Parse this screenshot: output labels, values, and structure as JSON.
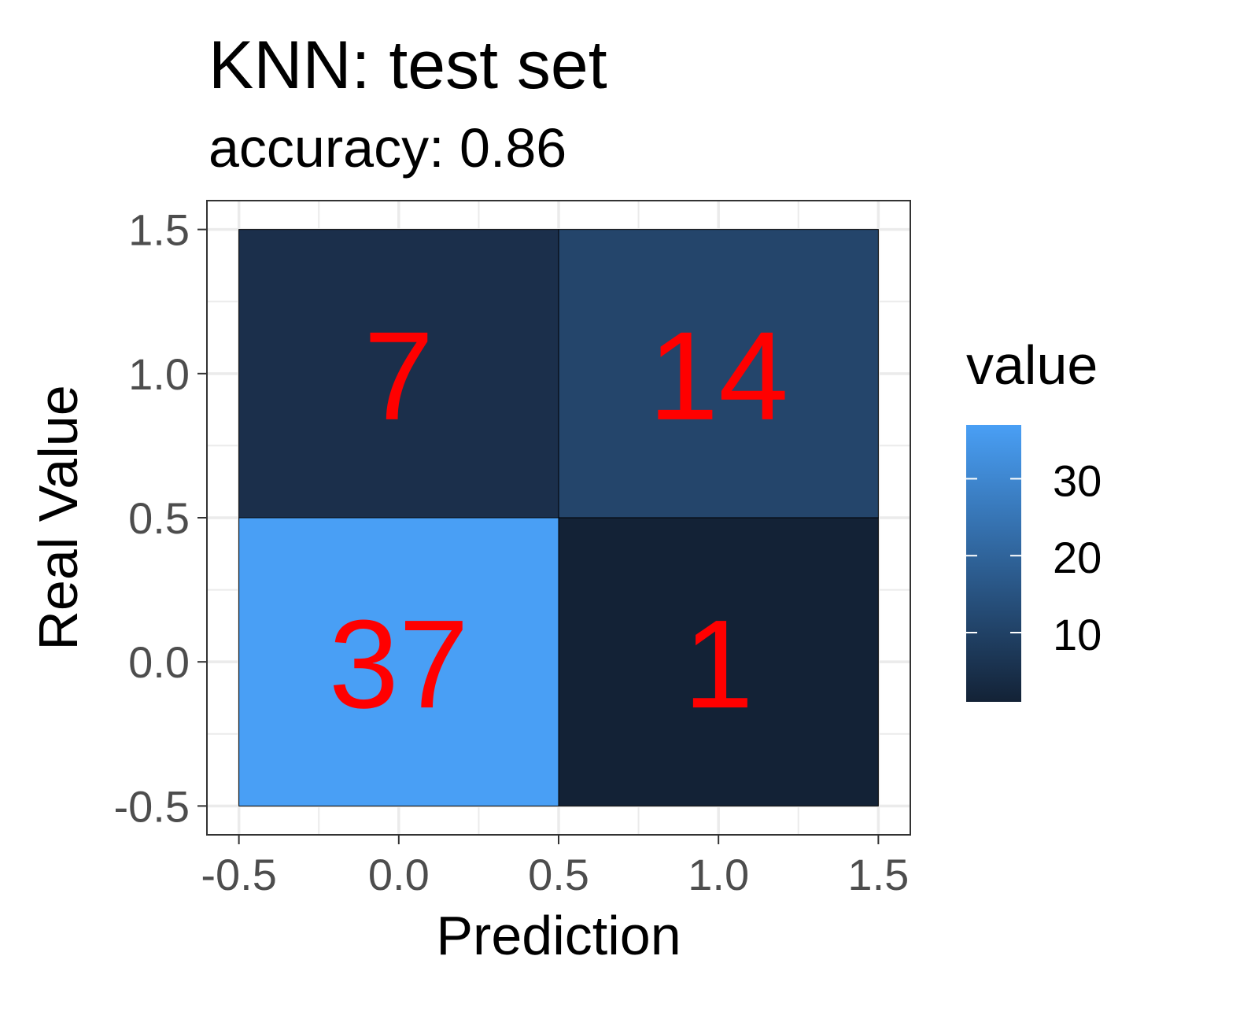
{
  "chart_data": {
    "type": "heatmap",
    "title": "KNN: test set",
    "subtitle": "accuracy: 0.86",
    "xlabel": "Prediction",
    "ylabel": "Real Value",
    "xlim": [
      -0.6,
      1.6
    ],
    "ylim": [
      -0.6,
      1.6
    ],
    "xticks": [
      -0.5,
      0.0,
      0.5,
      1.0,
      1.5
    ],
    "yticks": [
      -0.5,
      0.0,
      0.5,
      1.0,
      1.5
    ],
    "xtick_labels": [
      "-0.5",
      "0.0",
      "0.5",
      "1.0",
      "1.5"
    ],
    "ytick_labels": [
      "-0.5",
      "0.0",
      "0.5",
      "1.0",
      "1.5"
    ],
    "grid": true,
    "cells": [
      {
        "x": 0,
        "y": 1,
        "value": 7,
        "label": "7",
        "color": "#1b2f4b"
      },
      {
        "x": 1,
        "y": 1,
        "value": 14,
        "label": "14",
        "color": "#24456b"
      },
      {
        "x": 0,
        "y": 0,
        "value": 37,
        "label": "37",
        "color": "#499ff5"
      },
      {
        "x": 1,
        "y": 0,
        "value": 1,
        "label": "1",
        "color": "#132236"
      }
    ],
    "legend": {
      "title": "value",
      "position": "right",
      "range": [
        1,
        37
      ],
      "ticks": [
        10,
        20,
        30
      ],
      "tick_labels": [
        "10",
        "20",
        "30"
      ],
      "low_color": "#132236",
      "high_color": "#499ff5"
    },
    "label_color": "#ff0000"
  }
}
